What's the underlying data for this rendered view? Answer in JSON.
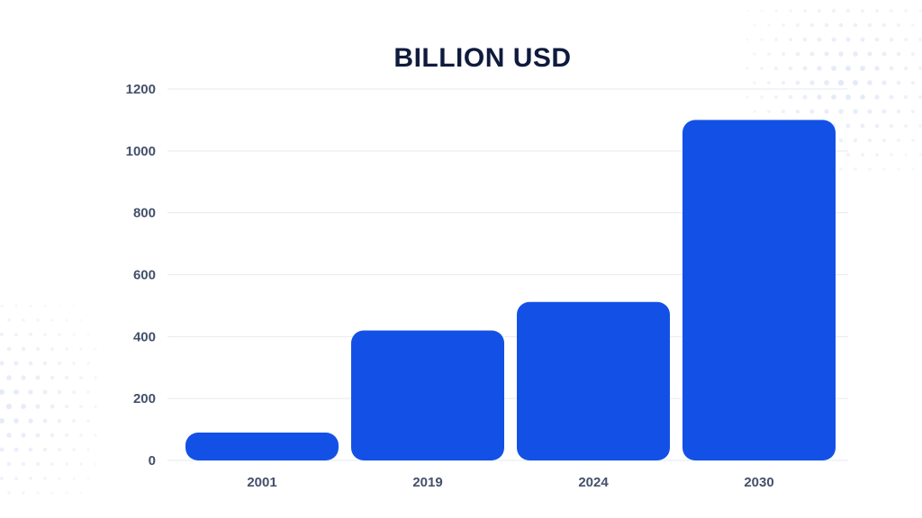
{
  "chart_data": {
    "type": "bar",
    "title": "BILLION USD",
    "categories": [
      "2001",
      "2019",
      "2024",
      "2030"
    ],
    "values": [
      90,
      420,
      512,
      1100
    ],
    "ylim": [
      0,
      1200
    ],
    "yticks": [
      0,
      200,
      400,
      600,
      800,
      1000,
      1200
    ],
    "grid": true,
    "legend": "none",
    "bar_color": "#1351e6",
    "title_color": "#0f1b3d",
    "tick_color": "#44506a"
  }
}
